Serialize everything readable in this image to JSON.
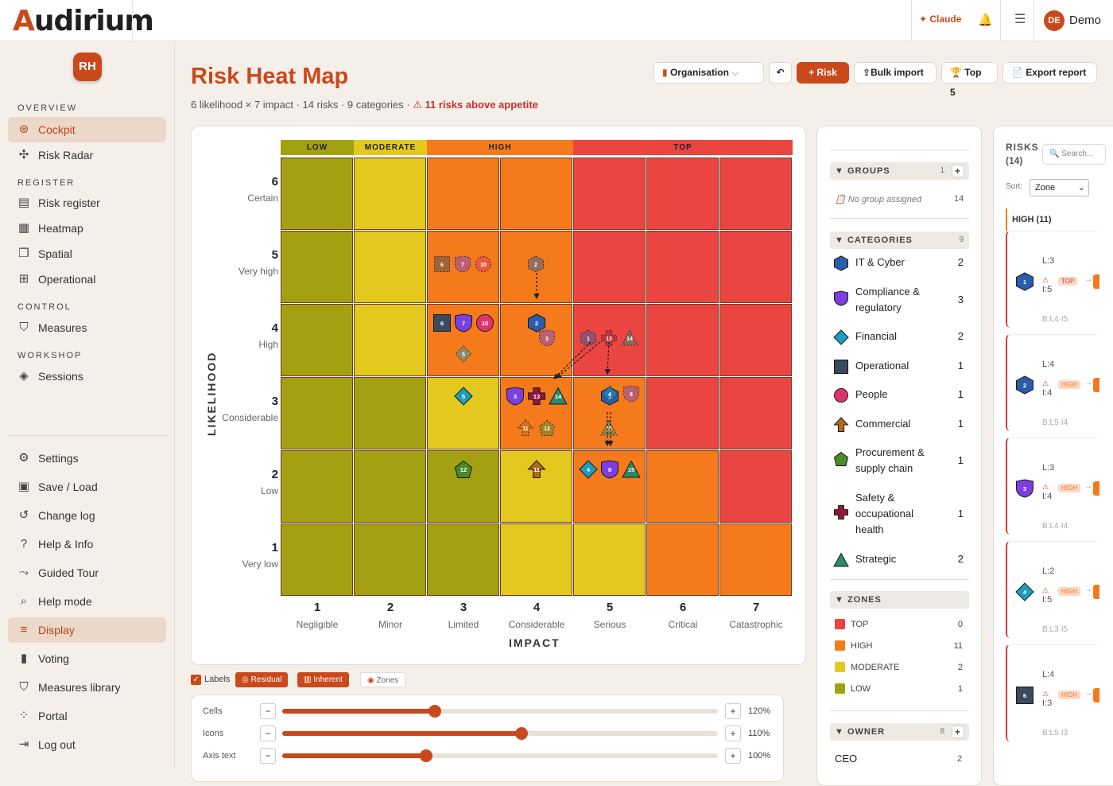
{
  "app": {
    "logo_first": "A",
    "logo_rest": "udirium",
    "claude": "Claude",
    "user_initials": "DE",
    "user_name": "Demo",
    "ws_initials": "RH"
  },
  "sidebar": {
    "sections": [
      {
        "label": "OVERVIEW",
        "items": [
          {
            "label": "Cockpit",
            "icon": "cockpit-icon",
            "active": true
          },
          {
            "label": "Risk Radar",
            "icon": "radar-icon"
          }
        ]
      },
      {
        "label": "REGISTER",
        "items": [
          {
            "label": "Risk register",
            "icon": "list-icon"
          },
          {
            "label": "Heatmap",
            "icon": "grid-icon"
          },
          {
            "label": "Spatial",
            "icon": "cube-icon"
          },
          {
            "label": "Operational",
            "icon": "org-icon"
          }
        ]
      },
      {
        "label": "CONTROL",
        "items": [
          {
            "label": "Measures",
            "icon": "shield-icon"
          }
        ]
      },
      {
        "label": "WORKSHOP",
        "items": [
          {
            "label": "Sessions",
            "icon": "layers-icon"
          }
        ]
      }
    ],
    "bottom": [
      {
        "label": "Settings",
        "icon": "gear-icon"
      },
      {
        "label": "Save / Load",
        "icon": "save-icon"
      },
      {
        "label": "Change log",
        "icon": "history-icon"
      },
      {
        "label": "Help & Info",
        "icon": "help-icon"
      },
      {
        "label": "Guided Tour",
        "icon": "route-icon"
      },
      {
        "label": "Help mode",
        "icon": "search-icon"
      },
      {
        "label": "Display",
        "icon": "sliders-icon",
        "active": true
      },
      {
        "label": "Voting",
        "icon": "chart-icon"
      },
      {
        "label": "Measures library",
        "icon": "shield-icon"
      },
      {
        "label": "Portal",
        "icon": "dots-icon"
      },
      {
        "label": "Log out",
        "icon": "logout-icon"
      }
    ]
  },
  "page": {
    "title": "Risk Heat Map",
    "subtitle": "6 likelihood × 7 impact · 14 risks · 9 categories ·",
    "warning": "⚠ 11 risks above appetite",
    "buttons": {
      "org": "Organisation",
      "undo": "↶",
      "add": "+ Risk",
      "bulk": "Bulk import",
      "top5": "Top 5",
      "export": "Export report"
    }
  },
  "heatmap": {
    "zone_headers": [
      "LOW",
      "MODERATE",
      "HIGH",
      "TOP"
    ],
    "likelihood": [
      {
        "n": "6",
        "label": "Certain"
      },
      {
        "n": "5",
        "label": "Very high"
      },
      {
        "n": "4",
        "label": "High"
      },
      {
        "n": "3",
        "label": "Considerable"
      },
      {
        "n": "2",
        "label": "Low"
      },
      {
        "n": "1",
        "label": "Very low"
      }
    ],
    "impact": [
      {
        "n": "1",
        "label": "Negligible"
      },
      {
        "n": "2",
        "label": "Minor"
      },
      {
        "n": "3",
        "label": "Limited"
      },
      {
        "n": "4",
        "label": "Considerable"
      },
      {
        "n": "5",
        "label": "Serious"
      },
      {
        "n": "6",
        "label": "Critical"
      },
      {
        "n": "7",
        "label": "Catastrophic"
      }
    ],
    "y_axis": "LIKELIHOOD",
    "x_axis": "IMPACT",
    "zone_grid": [
      [
        "L",
        "M",
        "H",
        "H",
        "T",
        "T",
        "T"
      ],
      [
        "L",
        "M",
        "H",
        "H",
        "T",
        "T",
        "T"
      ],
      [
        "L",
        "M",
        "H",
        "H",
        "T",
        "T",
        "T"
      ],
      [
        "L",
        "L",
        "M",
        "H",
        "H",
        "T",
        "T"
      ],
      [
        "L",
        "L",
        "L",
        "M",
        "H",
        "H",
        "T"
      ],
      [
        "L",
        "L",
        "L",
        "M",
        "M",
        "H",
        "H"
      ]
    ],
    "zone_colors": {
      "L": "#a3a112",
      "M": "#e3c91e",
      "H": "#f57a1b",
      "T": "#ea4540"
    },
    "residual": [
      {
        "id": "6",
        "shape": "square",
        "color": "#3b4a5c",
        "l": 4,
        "i": 3
      },
      {
        "id": "7",
        "shape": "shield",
        "color": "#7b3fe0",
        "l": 4,
        "i": 3
      },
      {
        "id": "10",
        "shape": "circle",
        "color": "#e0336e",
        "l": 4,
        "i": 3
      },
      {
        "id": "2",
        "shape": "hexagon",
        "color": "#2a5db0",
        "l": 4,
        "i": 4
      },
      {
        "id": "5",
        "shape": "diamond",
        "color": "#1c9cbf",
        "l": 3,
        "i": 3
      },
      {
        "id": "3",
        "shape": "shield",
        "color": "#7b3fe0",
        "l": 3,
        "i": 4
      },
      {
        "id": "13",
        "shape": "cross",
        "color": "#8d1a3a",
        "l": 3,
        "i": 4
      },
      {
        "id": "14",
        "shape": "triangle",
        "color": "#2a8a6a",
        "l": 3,
        "i": 4
      },
      {
        "id": "1",
        "shape": "hexagon",
        "color": "#2a5db0",
        "l": 3,
        "i": 5
      },
      {
        "id": "12",
        "shape": "pentagon",
        "color": "#4a8a2a",
        "l": 2,
        "i": 3
      },
      {
        "id": "11",
        "shape": "arrow",
        "color": "#b06a18",
        "l": 2,
        "i": 4
      },
      {
        "id": "4",
        "shape": "diamond",
        "color": "#1c9cbf",
        "l": 2,
        "i": 5
      },
      {
        "id": "8",
        "shape": "shield",
        "color": "#7b3fe0",
        "l": 2,
        "i": 5
      },
      {
        "id": "15",
        "shape": "triangle",
        "color": "#2a8a6a",
        "l": 2,
        "i": 5
      }
    ]
  },
  "display_opts": {
    "labels": "Labels",
    "residual": "Residual",
    "inherent": "Inherent",
    "zones": "Zones"
  },
  "sliders": [
    {
      "label": "Cells",
      "value": 0.35,
      "pct": "120%"
    },
    {
      "label": "Icons",
      "value": 0.55,
      "pct": "110%"
    },
    {
      "label": "Axis text",
      "value": 0.33,
      "pct": "100%"
    }
  ],
  "groups": {
    "title": "GROUPS",
    "count": "1",
    "none_label": "No group assigned",
    "none_count": "14"
  },
  "categories": {
    "title": "CATEGORIES",
    "count": "9",
    "items": [
      {
        "label": "IT & Cyber",
        "count": "2",
        "shape": "hexagon",
        "color": "#2a5db0"
      },
      {
        "label": "Compliance & regulatory",
        "count": "3",
        "shape": "shield",
        "color": "#7b3fe0"
      },
      {
        "label": "Financial",
        "count": "2",
        "shape": "diamond",
        "color": "#1c9cbf"
      },
      {
        "label": "Operational",
        "count": "1",
        "shape": "square",
        "color": "#3b4a5c"
      },
      {
        "label": "People",
        "count": "1",
        "shape": "circle",
        "color": "#e0336e"
      },
      {
        "label": "Commercial",
        "count": "1",
        "shape": "arrow",
        "color": "#b06a18"
      },
      {
        "label": "Procurement & supply chain",
        "count": "1",
        "shape": "pentagon",
        "color": "#4a8a2a"
      },
      {
        "label": "Safety & occupational health",
        "count": "1",
        "shape": "cross",
        "color": "#8d1a3a"
      },
      {
        "label": "Strategic",
        "count": "2",
        "shape": "triangle",
        "color": "#2a8a6a"
      }
    ]
  },
  "zones": {
    "title": "ZONES",
    "items": [
      {
        "label": "TOP",
        "count": "0",
        "color": "#ea4540"
      },
      {
        "label": "HIGH",
        "count": "11",
        "color": "#f57a1b"
      },
      {
        "label": "MODERATE",
        "count": "2",
        "color": "#e3c91e"
      },
      {
        "label": "LOW",
        "count": "1",
        "color": "#a3a112"
      }
    ]
  },
  "owner": {
    "title": "OWNER",
    "count": "8",
    "first": "CEO",
    "first_count": "2"
  },
  "risks_panel": {
    "title": "RISKS",
    "count": "(14)",
    "search": "Search...",
    "sort_label": "Sort:",
    "sort_value": "Zone",
    "group": "HIGH (11)",
    "cards": [
      {
        "id": "1",
        "l": "L:3",
        "i": "I:5",
        "tag": "TOP",
        "b": "B:L4·I5",
        "shape": "hexagon",
        "color": "#2a5db0"
      },
      {
        "id": "2",
        "l": "L:4",
        "i": "I:4",
        "tag": "HIGH",
        "b": "B:L5·I4",
        "shape": "hexagon",
        "color": "#2a5db0"
      },
      {
        "id": "3",
        "l": "L:3",
        "i": "I:4",
        "tag": "HIGH",
        "b": "B:L4·I4",
        "shape": "shield",
        "color": "#7b3fe0"
      },
      {
        "id": "4",
        "l": "L:2",
        "i": "I:5",
        "tag": "HIGH",
        "b": "B:L3·I5",
        "shape": "diamond",
        "color": "#1c9cbf"
      },
      {
        "id": "6",
        "l": "L:4",
        "i": "I:3",
        "tag": "HIGH",
        "b": "B:L5·I3",
        "shape": "square",
        "color": "#3b4a5c"
      }
    ]
  }
}
